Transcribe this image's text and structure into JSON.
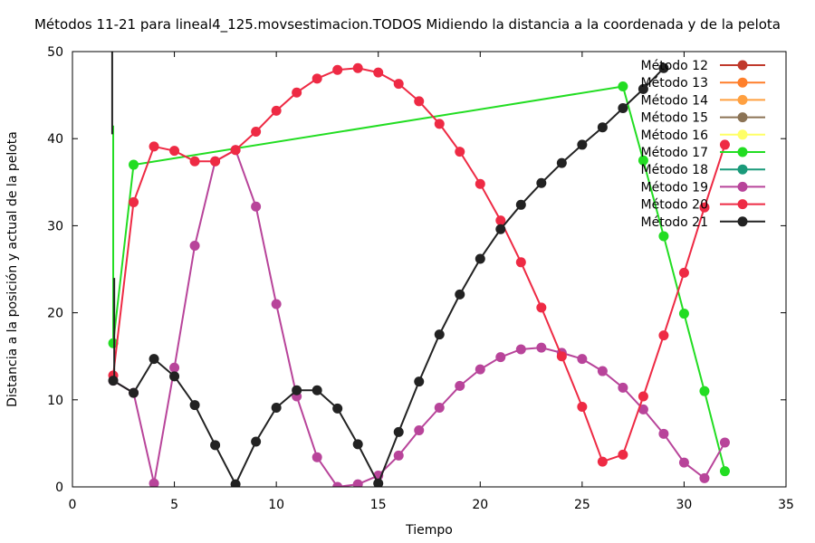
{
  "chart_data": {
    "type": "line",
    "title": "Métodos 11-21 para lineal4_125.movsestimacion.TODOS Midiendo la distancia a la coordenada y de la pelota",
    "xlabel": "Tiempo",
    "ylabel": "Distancia a la posición y actual de la pelota",
    "xlim": [
      0,
      35
    ],
    "ylim": [
      0,
      50
    ],
    "xticks": [
      0,
      5,
      10,
      15,
      20,
      25,
      30,
      35
    ],
    "yticks": [
      0,
      10,
      20,
      30,
      40,
      50
    ],
    "grid": false,
    "legend_position": "top-right",
    "series": [
      {
        "name": "Método 12",
        "color": "#c0392b",
        "x": [],
        "y": []
      },
      {
        "name": "Método 13",
        "color": "#ff7f2a",
        "x": [],
        "y": []
      },
      {
        "name": "Método 14",
        "color": "#ffa040",
        "x": [],
        "y": []
      },
      {
        "name": "Método 15",
        "color": "#8b7355",
        "x": [],
        "y": []
      },
      {
        "name": "Método 16",
        "color": "#ffff66",
        "x": [],
        "y": []
      },
      {
        "name": "Método 17",
        "color": "#22dd22",
        "x": [
          2,
          3,
          27,
          28,
          29,
          30,
          31,
          32
        ],
        "y": [
          16.5,
          37,
          46,
          37.5,
          28.8,
          19.9,
          11,
          1.8
        ]
      },
      {
        "name": "Método 18",
        "color": "#1a9a7a",
        "x": [],
        "y": []
      },
      {
        "name": "Método 19",
        "color": "#b8449a",
        "x": [
          2,
          3,
          4,
          5,
          6,
          7,
          8,
          9,
          10,
          11,
          12,
          13,
          14,
          15,
          16,
          17,
          18,
          19,
          20,
          21,
          22,
          23,
          24,
          25,
          26,
          27,
          28,
          29,
          30,
          31,
          32
        ],
        "y": [
          12.2,
          10.8,
          0.4,
          13.7,
          27.7,
          37.4,
          38.7,
          32.2,
          21.0,
          10.4,
          3.4,
          0.0,
          0.3,
          1.3,
          3.6,
          6.5,
          9.1,
          11.6,
          13.5,
          14.9,
          15.8,
          16.0,
          15.4,
          14.7,
          13.3,
          11.4,
          8.9,
          6.1,
          2.8,
          1.0,
          5.1
        ]
      },
      {
        "name": "Método 20",
        "color": "#ee2a44",
        "x": [
          2,
          3,
          4,
          5,
          6,
          7,
          8,
          9,
          10,
          11,
          12,
          13,
          14,
          15,
          16,
          17,
          18,
          19,
          20,
          21,
          22,
          23,
          24,
          25,
          26,
          27,
          28,
          29,
          30,
          31,
          32
        ],
        "y": [
          12.8,
          32.7,
          39.1,
          38.6,
          37.4,
          37.4,
          38.7,
          40.8,
          43.2,
          45.3,
          46.9,
          47.9,
          48.1,
          47.6,
          46.3,
          44.3,
          41.7,
          38.5,
          34.8,
          30.6,
          25.8,
          20.6,
          15.0,
          9.2,
          2.9,
          3.7,
          10.4,
          17.4,
          24.6,
          32.1,
          39.3
        ]
      },
      {
        "name": "Método 21",
        "color": "#222222",
        "x": [
          2,
          3,
          4,
          5,
          6,
          7,
          8,
          9,
          10,
          11,
          12,
          13,
          14,
          15,
          16,
          17,
          18,
          19,
          20,
          21,
          22,
          23,
          24,
          25,
          26,
          27,
          28,
          29
        ],
        "y": [
          12.2,
          10.8,
          14.7,
          12.7,
          9.4,
          4.8,
          0.3,
          5.2,
          9.1,
          11.1,
          11.1,
          9.0,
          4.9,
          0.4,
          6.3,
          12.1,
          17.5,
          22.1,
          26.2,
          29.6,
          32.4,
          34.9,
          37.2,
          39.3,
          41.3,
          43.5,
          45.7,
          48.1
        ]
      }
    ]
  }
}
